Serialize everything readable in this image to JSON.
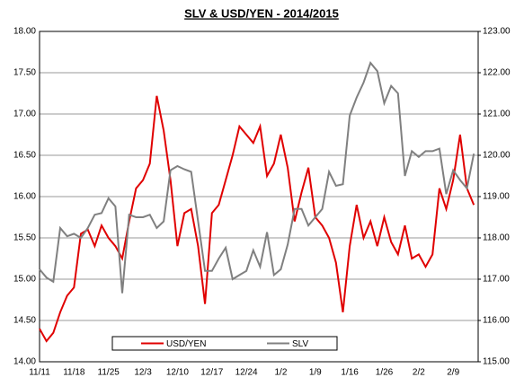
{
  "chart_data": {
    "type": "line",
    "title": "SLV & USD/YEN -  2014/2015",
    "categories": [
      "11/11",
      null,
      null,
      null,
      null,
      "11/18",
      null,
      null,
      null,
      null,
      "11/25",
      null,
      null,
      null,
      null,
      "12/3",
      null,
      null,
      null,
      null,
      "12/10",
      null,
      null,
      null,
      null,
      "12/17",
      null,
      null,
      null,
      null,
      "12/24",
      null,
      null,
      null,
      null,
      "1/2",
      null,
      null,
      null,
      null,
      "1/9",
      null,
      null,
      null,
      null,
      "1/16",
      null,
      null,
      null,
      null,
      "1/26",
      null,
      null,
      null,
      null,
      "2/2",
      null,
      null,
      null,
      null,
      "2/9",
      null,
      null,
      null
    ],
    "series": [
      {
        "name": "USD/YEN",
        "color": "#e00000",
        "axis": "y2",
        "values": [
          115.8,
          115.5,
          115.7,
          116.2,
          116.6,
          116.8,
          118.1,
          118.2,
          117.8,
          118.3,
          118.0,
          117.8,
          117.5,
          118.4,
          119.2,
          119.4,
          119.8,
          121.44,
          120.6,
          119.4,
          117.8,
          118.6,
          118.7,
          117.8,
          116.4,
          118.6,
          118.8,
          119.4,
          120.0,
          120.7,
          120.5,
          120.3,
          120.7,
          119.5,
          119.8,
          120.5,
          119.7,
          118.4,
          119.1,
          119.7,
          118.5,
          118.3,
          118.0,
          117.4,
          116.2,
          117.8,
          118.8,
          118.0,
          118.4,
          117.8,
          118.5,
          117.9,
          117.6,
          118.3,
          117.5,
          117.6,
          117.3,
          117.6,
          119.2,
          118.7,
          119.4,
          120.5,
          119.2,
          118.8
        ]
      },
      {
        "name": "SLV",
        "color": "#808080",
        "values": [
          15.12,
          15.02,
          14.97,
          15.62,
          15.52,
          15.55,
          15.5,
          15.62,
          15.78,
          15.8,
          15.98,
          15.88,
          14.83,
          15.78,
          15.75,
          15.75,
          15.78,
          15.62,
          15.7,
          16.32,
          16.37,
          16.33,
          16.3,
          15.7,
          15.1,
          15.1,
          15.25,
          15.38,
          15.0,
          15.05,
          15.1,
          15.35,
          15.15,
          15.57,
          15.05,
          15.12,
          15.42,
          15.85,
          15.85,
          15.65,
          15.75,
          15.85,
          16.3,
          16.13,
          16.15,
          16.98,
          17.2,
          17.38,
          17.62,
          17.52,
          17.13,
          17.34,
          17.25,
          16.25,
          16.55,
          16.48,
          16.55,
          16.55,
          16.58,
          16.03,
          16.32,
          16.2,
          16.1,
          16.52
        ]
      }
    ],
    "ylim": [
      14,
      18
    ],
    "yticks": [
      {
        "value": 14,
        "label": "14.00"
      },
      {
        "value": 14.5,
        "label": "14.50"
      },
      {
        "value": 15,
        "label": "15.00"
      },
      {
        "value": 15.5,
        "label": "15.50"
      },
      {
        "value": 16,
        "label": "16.00"
      },
      {
        "value": 16.5,
        "label": "16.50"
      },
      {
        "value": 17,
        "label": "17.00"
      },
      {
        "value": 17.5,
        "label": "17.50"
      },
      {
        "value": 18,
        "label": "18.00"
      }
    ],
    "y2lim": [
      115,
      123
    ],
    "y2ticks": [
      {
        "value": 115,
        "label": "115.00"
      },
      {
        "value": 116,
        "label": "116.00"
      },
      {
        "value": 117,
        "label": "117.00"
      },
      {
        "value": 118,
        "label": "118.00"
      },
      {
        "value": 119,
        "label": "119.00"
      },
      {
        "value": 120,
        "label": "120.00"
      },
      {
        "value": 121,
        "label": "121.00"
      },
      {
        "value": 122,
        "label": "122.00"
      },
      {
        "value": 123,
        "label": "123.00"
      }
    ],
    "grid": true,
    "legend": "bottom"
  }
}
